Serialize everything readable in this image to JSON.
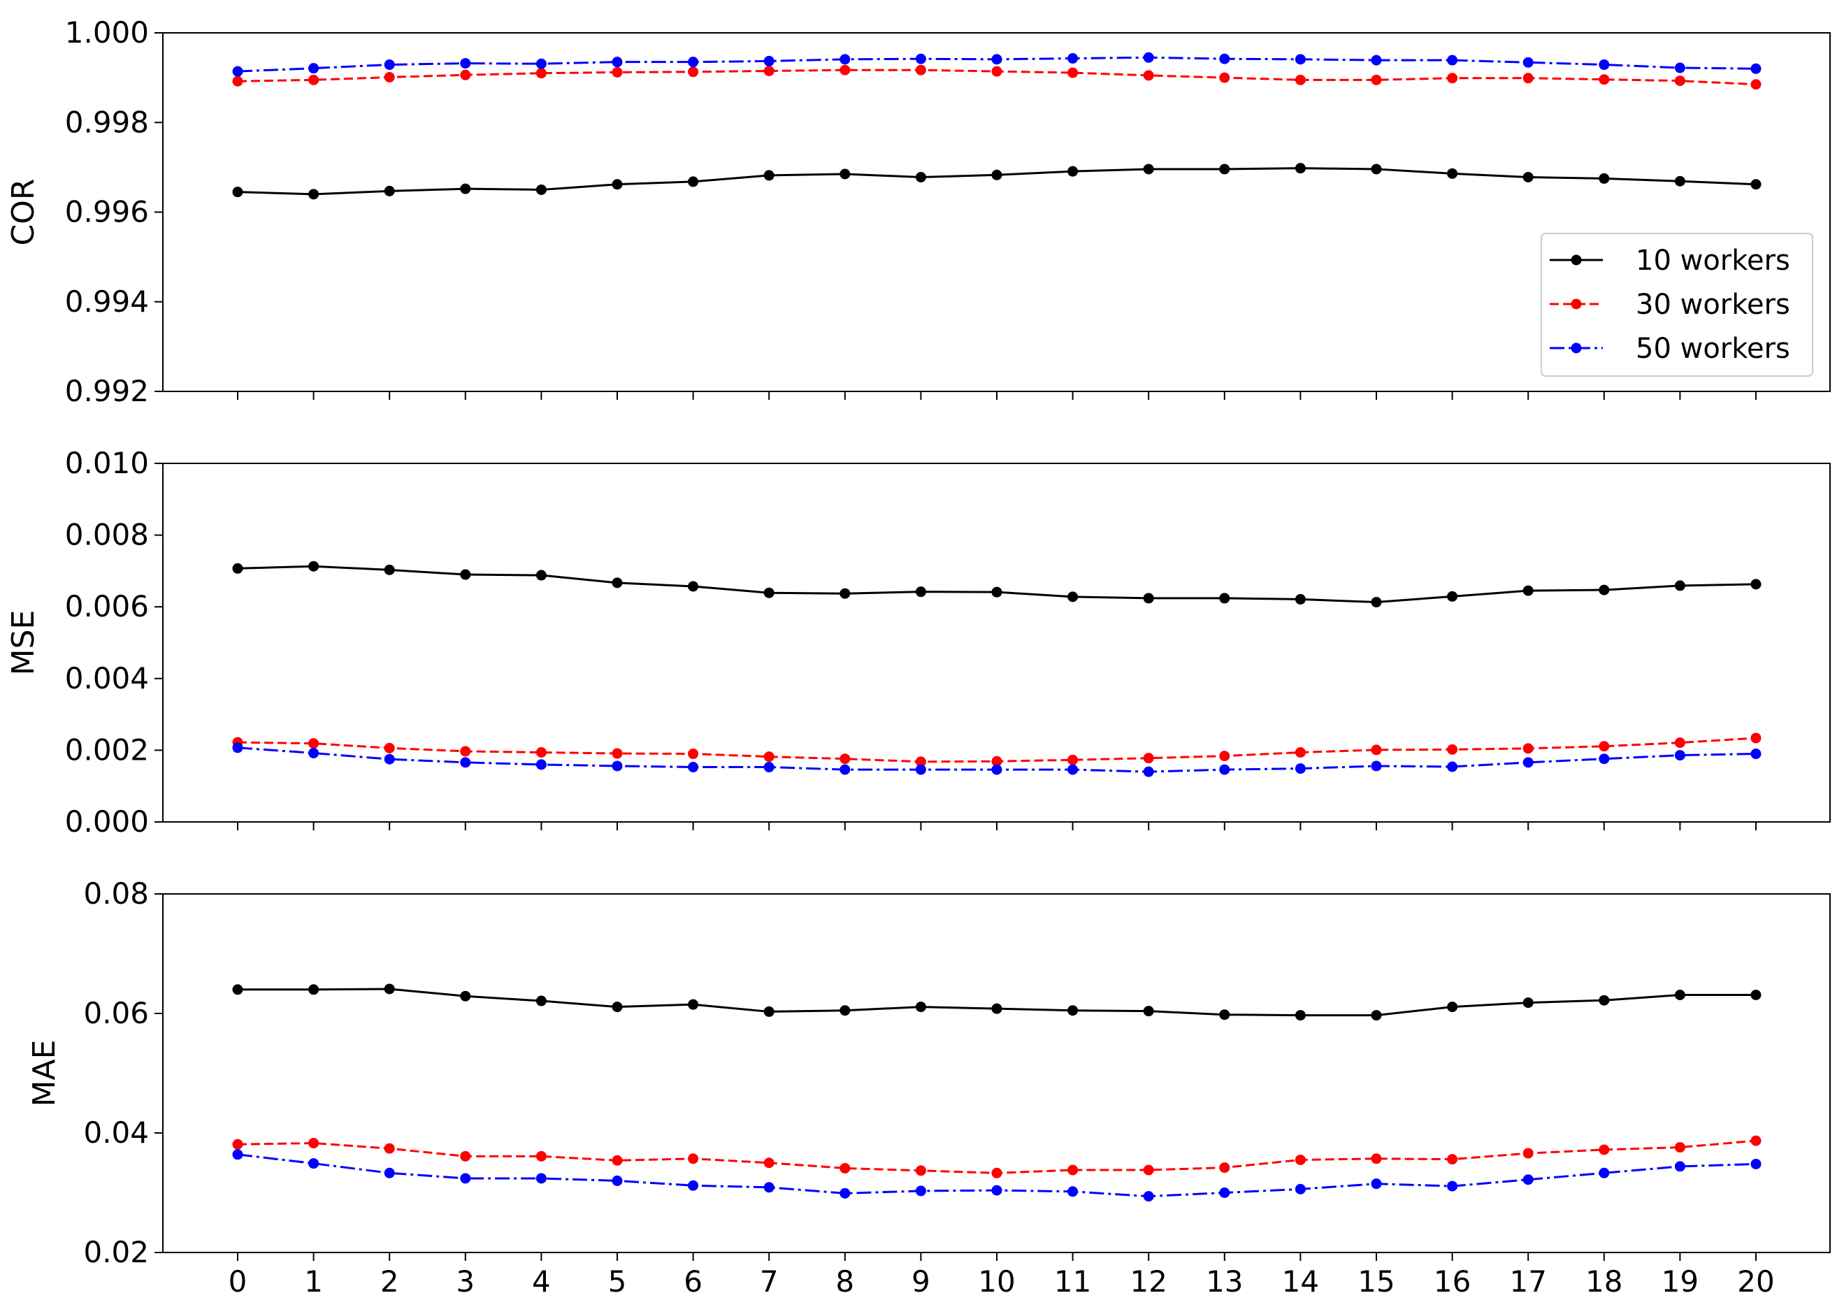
{
  "chart_data": [
    {
      "type": "line",
      "ylabel": "COR",
      "ylim": [
        0.992,
        1.0
      ],
      "yticks": [
        "0.992",
        "0.994",
        "0.996",
        "0.998",
        "1.000"
      ],
      "x": [
        0,
        1,
        2,
        3,
        4,
        5,
        6,
        7,
        8,
        9,
        10,
        11,
        12,
        13,
        14,
        15,
        16,
        17,
        18,
        19,
        20
      ],
      "xtick_labels_shown": false,
      "legend": {
        "position": "center-right",
        "entries": [
          "10 workers",
          "30 workers",
          "50 workers"
        ]
      },
      "series": [
        {
          "name": "10 workers",
          "color": "#000000",
          "linestyle": "solid",
          "values": [
            0.99645,
            0.9964,
            0.99647,
            0.99652,
            0.9965,
            0.99662,
            0.99668,
            0.99682,
            0.99685,
            0.99678,
            0.99683,
            0.99691,
            0.99696,
            0.99696,
            0.99698,
            0.99696,
            0.99686,
            0.99678,
            0.99675,
            0.99669,
            0.99662
          ]
        },
        {
          "name": "30 workers",
          "color": "#ff0000",
          "linestyle": "dashed",
          "values": [
            0.99892,
            0.99895,
            0.99901,
            0.99906,
            0.9991,
            0.99912,
            0.99913,
            0.99915,
            0.99917,
            0.99917,
            0.99914,
            0.99911,
            0.99905,
            0.999,
            0.99895,
            0.99895,
            0.99899,
            0.99899,
            0.99896,
            0.99893,
            0.99885
          ]
        },
        {
          "name": "50 workers",
          "color": "#0000ff",
          "linestyle": "dashdot",
          "values": [
            0.99914,
            0.99921,
            0.99929,
            0.99932,
            0.99931,
            0.99935,
            0.99935,
            0.99937,
            0.99941,
            0.99942,
            0.99941,
            0.99943,
            0.99945,
            0.99942,
            0.99941,
            0.99939,
            0.99939,
            0.99934,
            0.99929,
            0.99922,
            0.9992
          ]
        }
      ]
    },
    {
      "type": "line",
      "ylabel": "MSE",
      "ylim": [
        0.0,
        0.01
      ],
      "yticks": [
        "0.000",
        "0.002",
        "0.004",
        "0.006",
        "0.008",
        "0.010"
      ],
      "x": [
        0,
        1,
        2,
        3,
        4,
        5,
        6,
        7,
        8,
        9,
        10,
        11,
        12,
        13,
        14,
        15,
        16,
        17,
        18,
        19,
        20
      ],
      "xtick_labels_shown": false,
      "series": [
        {
          "name": "10 workers",
          "color": "#000000",
          "linestyle": "solid",
          "values": [
            0.00707,
            0.00713,
            0.00703,
            0.0069,
            0.00688,
            0.00667,
            0.00657,
            0.00639,
            0.00637,
            0.00642,
            0.00641,
            0.00628,
            0.00624,
            0.00624,
            0.00621,
            0.00613,
            0.00629,
            0.00645,
            0.00647,
            0.00659,
            0.00663
          ]
        },
        {
          "name": "30 workers",
          "color": "#ff0000",
          "linestyle": "dashed",
          "values": [
            0.00222,
            0.00219,
            0.00206,
            0.00197,
            0.00194,
            0.00191,
            0.0019,
            0.00182,
            0.00176,
            0.00168,
            0.00169,
            0.00173,
            0.00178,
            0.00184,
            0.00194,
            0.00201,
            0.00202,
            0.00205,
            0.00211,
            0.00221,
            0.00234
          ]
        },
        {
          "name": "50 workers",
          "color": "#0000ff",
          "linestyle": "dashdot",
          "values": [
            0.00207,
            0.00192,
            0.00175,
            0.00166,
            0.0016,
            0.00156,
            0.00153,
            0.00153,
            0.00146,
            0.00146,
            0.00146,
            0.00146,
            0.0014,
            0.00146,
            0.00149,
            0.00156,
            0.00154,
            0.00166,
            0.00176,
            0.00186,
            0.0019
          ]
        }
      ]
    },
    {
      "type": "line",
      "ylabel": "MAE",
      "ylim": [
        0.02,
        0.08
      ],
      "yticks": [
        "0.02",
        "0.04",
        "0.06",
        "0.08"
      ],
      "x": [
        0,
        1,
        2,
        3,
        4,
        5,
        6,
        7,
        8,
        9,
        10,
        11,
        12,
        13,
        14,
        15,
        16,
        17,
        18,
        19,
        20
      ],
      "xticks": [
        "0",
        "1",
        "2",
        "3",
        "4",
        "5",
        "6",
        "7",
        "8",
        "9",
        "10",
        "11",
        "12",
        "13",
        "14",
        "15",
        "16",
        "17",
        "18",
        "19",
        "20"
      ],
      "series": [
        {
          "name": "10 workers",
          "color": "#000000",
          "linestyle": "solid",
          "values": [
            0.064,
            0.064,
            0.0641,
            0.0629,
            0.0621,
            0.0611,
            0.0615,
            0.0603,
            0.0605,
            0.0611,
            0.0608,
            0.0605,
            0.0604,
            0.0598,
            0.0597,
            0.0597,
            0.0611,
            0.0618,
            0.0622,
            0.0631,
            0.0631
          ]
        },
        {
          "name": "30 workers",
          "color": "#ff0000",
          "linestyle": "dashed",
          "values": [
            0.0381,
            0.0383,
            0.0374,
            0.0361,
            0.0361,
            0.0354,
            0.0357,
            0.035,
            0.0341,
            0.0337,
            0.0333,
            0.0338,
            0.0338,
            0.0342,
            0.0355,
            0.0357,
            0.0356,
            0.0366,
            0.0372,
            0.0376,
            0.0387
          ]
        },
        {
          "name": "50 workers",
          "color": "#0000ff",
          "linestyle": "dashdot",
          "values": [
            0.0364,
            0.0349,
            0.0333,
            0.0324,
            0.0324,
            0.032,
            0.0312,
            0.0309,
            0.0299,
            0.0303,
            0.0304,
            0.0302,
            0.0294,
            0.03,
            0.0306,
            0.0315,
            0.0311,
            0.0322,
            0.0333,
            0.0344,
            0.0348
          ]
        }
      ]
    }
  ]
}
